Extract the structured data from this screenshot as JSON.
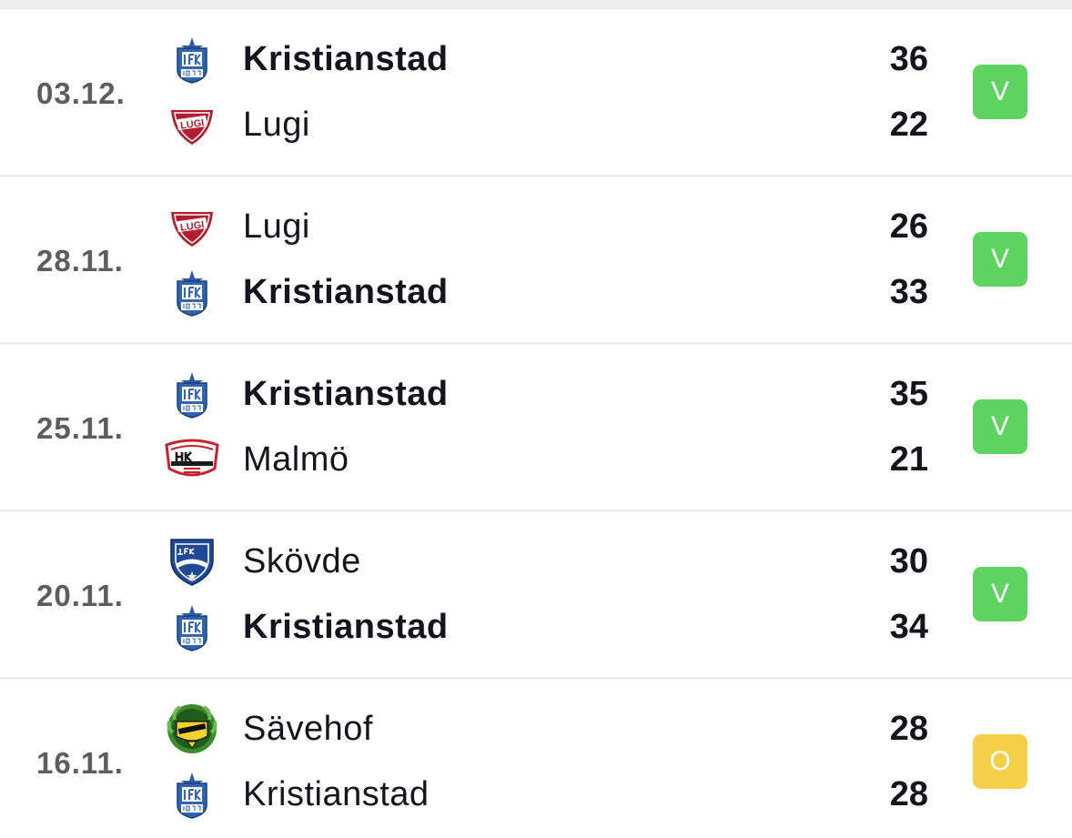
{
  "colors": {
    "win_badge": "#5fd35f",
    "draw_badge": "#f5cf48",
    "date_text": "#5d5d5d",
    "team_text": "#14141f"
  },
  "matches": [
    {
      "date": "03.12.",
      "home": {
        "name": "Kristianstad",
        "score": "36",
        "logo": "ifk-kristianstad-crest-icon",
        "winner": true
      },
      "away": {
        "name": "Lugi",
        "score": "22",
        "logo": "lugi-crest-icon",
        "winner": false
      },
      "result": "V"
    },
    {
      "date": "28.11.",
      "home": {
        "name": "Lugi",
        "score": "26",
        "logo": "lugi-crest-icon",
        "winner": false
      },
      "away": {
        "name": "Kristianstad",
        "score": "33",
        "logo": "ifk-kristianstad-crest-icon",
        "winner": true
      },
      "result": "V"
    },
    {
      "date": "25.11.",
      "home": {
        "name": "Kristianstad",
        "score": "35",
        "logo": "ifk-kristianstad-crest-icon",
        "winner": true
      },
      "away": {
        "name": "Malmö",
        "score": "21",
        "logo": "hk-malmo-crest-icon",
        "winner": false
      },
      "result": "V"
    },
    {
      "date": "20.11.",
      "home": {
        "name": "Skövde",
        "score": "30",
        "logo": "ifk-skovde-crest-icon",
        "winner": false
      },
      "away": {
        "name": "Kristianstad",
        "score": "34",
        "logo": "ifk-kristianstad-crest-icon",
        "winner": true
      },
      "result": "V"
    },
    {
      "date": "16.11.",
      "home": {
        "name": "Sävehof",
        "score": "28",
        "logo": "ik-savehof-crest-icon",
        "winner": false
      },
      "away": {
        "name": "Kristianstad",
        "score": "28",
        "logo": "ifk-kristianstad-crest-icon",
        "winner": false
      },
      "result": "O"
    }
  ]
}
